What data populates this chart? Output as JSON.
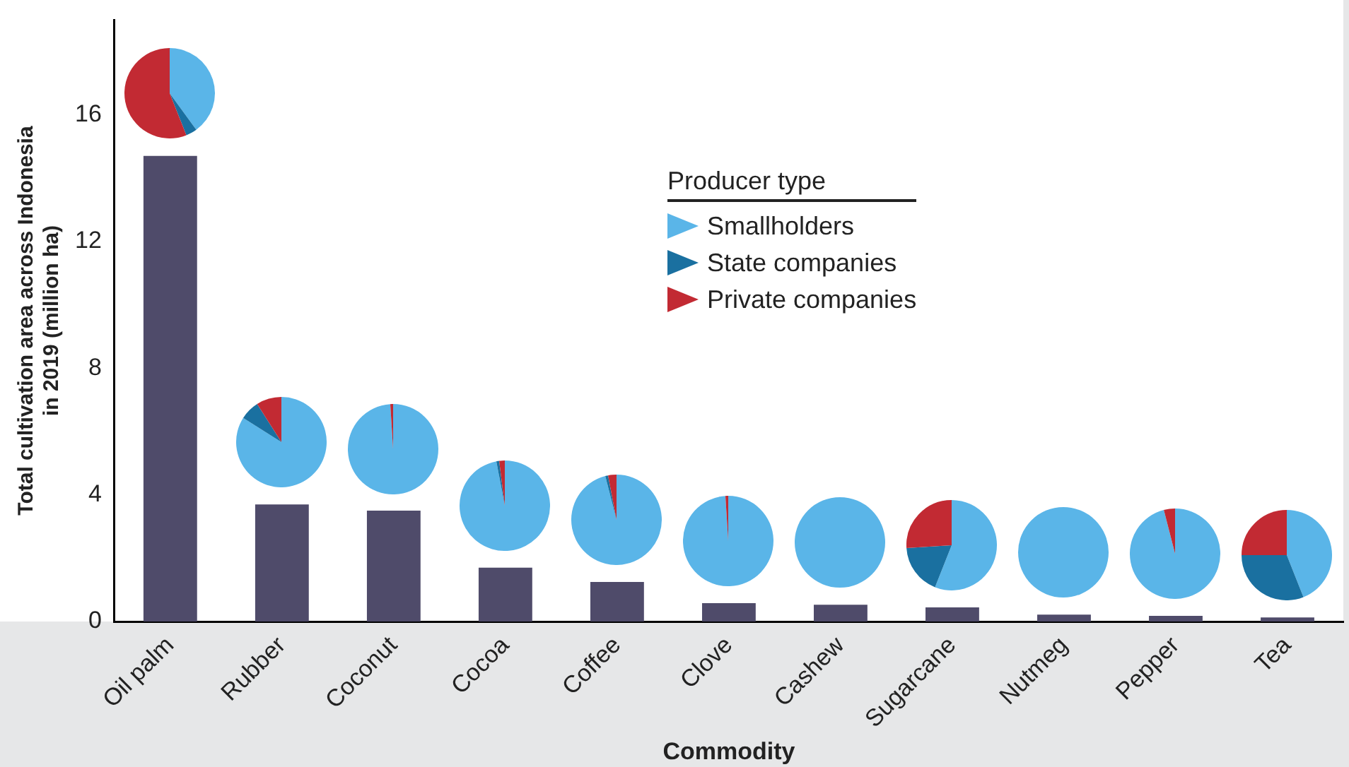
{
  "chart_data": [
    {
      "type": "bar",
      "xlabel": "Commodity",
      "ylabel": "Total cultivation area across Indonesia in 2019 (million ha)",
      "categories": [
        "Oil palm",
        "Rubber",
        "Coconut",
        "Cocoa",
        "Coffee",
        "Clove",
        "Cashew",
        "Sugarcane",
        "Nutmeg",
        "Pepper",
        "Tea"
      ],
      "values": [
        14.7,
        3.7,
        3.5,
        1.7,
        1.25,
        0.58,
        0.53,
        0.45,
        0.22,
        0.18,
        0.13
      ],
      "color": "#4f4b6a",
      "ylim": [
        0,
        19
      ],
      "yticks": [
        0,
        4,
        8,
        12,
        16
      ],
      "grid": false
    },
    {
      "type": "pie",
      "legend": "bottom right",
      "legend_title": "Producer type",
      "categories": [
        "Smallholders",
        "State companies",
        "Private companies"
      ],
      "values": [
        40,
        4,
        56
      ],
      "colors": [
        "#5ab5e8",
        "#1a70a0",
        "#c22a33"
      ]
    },
    {
      "type": "pie",
      "categories": [
        null,
        null,
        null
      ],
      "values": [
        84,
        7,
        9
      ],
      "colors": [
        "#5ab5e8",
        "#1a70a0",
        "#c22a33"
      ]
    },
    {
      "type": "pie",
      "categories": [
        null,
        null,
        null
      ],
      "values": [
        99,
        0,
        1
      ],
      "colors": [
        "#5ab5e8",
        "#1a70a0",
        "#c22a33"
      ]
    },
    {
      "type": "pie",
      "categories": [
        null,
        null,
        null
      ],
      "values": [
        97,
        1,
        2
      ],
      "colors": [
        "#5ab5e8",
        "#1a70a0",
        "#c22a33"
      ]
    },
    {
      "type": "pie",
      "categories": [
        null,
        null,
        null
      ],
      "values": [
        96,
        1,
        3
      ],
      "colors": [
        "#5ab5e8",
        "#1a70a0",
        "#c22a33"
      ]
    },
    {
      "type": "pie",
      "categories": [
        null,
        null,
        null
      ],
      "values": [
        99,
        0,
        1
      ],
      "colors": [
        "#5ab5e8",
        "#1a70a0",
        "#c22a33"
      ]
    },
    {
      "type": "pie",
      "categories": [
        null,
        null,
        null
      ],
      "values": [
        100,
        0,
        0
      ],
      "colors": [
        "#5ab5e8",
        "#1a70a0",
        "#c22a33"
      ]
    },
    {
      "type": "pie",
      "categories": [
        null,
        null,
        null
      ],
      "values": [
        56,
        18,
        26
      ],
      "colors": [
        "#5ab5e8",
        "#1a70a0",
        "#c22a33"
      ]
    },
    {
      "type": "pie",
      "categories": [
        null,
        null,
        null
      ],
      "values": [
        100,
        0,
        0
      ],
      "colors": [
        "#5ab5e8",
        "#1a70a0",
        "#c22a33"
      ]
    },
    {
      "type": "pie",
      "categories": [
        null,
        null,
        null
      ],
      "values": [
        96,
        0,
        4
      ],
      "colors": [
        "#5ab5e8",
        "#1a70a0",
        "#c22a33"
      ]
    },
    {
      "type": "pie",
      "categories": [
        null,
        null,
        null
      ],
      "values": [
        44,
        31,
        25
      ],
      "colors": [
        "#5ab5e8",
        "#1a70a0",
        "#c22a33"
      ]
    }
  ]
}
